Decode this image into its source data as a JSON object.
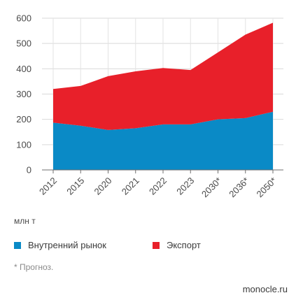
{
  "chart_data": {
    "type": "area",
    "stacked": true,
    "categories": [
      "2012",
      "2015",
      "2020",
      "2021",
      "2022",
      "2023",
      "2030*",
      "2036*",
      "2050*"
    ],
    "series": [
      {
        "name": "Внутренний рынок",
        "color": "#0a8ac6",
        "values": [
          187,
          175,
          158,
          165,
          180,
          180,
          200,
          205,
          230
        ]
      },
      {
        "name": "Экспорт",
        "color": "#e8202a",
        "values": [
          133,
          157,
          213,
          225,
          223,
          215,
          265,
          330,
          352
        ]
      }
    ],
    "ylim": [
      0,
      600
    ],
    "yticks": [
      0,
      100,
      200,
      300,
      400,
      500,
      600
    ],
    "grid": true,
    "legend_position": "bottom",
    "unit_label": "млн т",
    "footnote": "* Прогноз.",
    "source": "monocle.ru"
  }
}
